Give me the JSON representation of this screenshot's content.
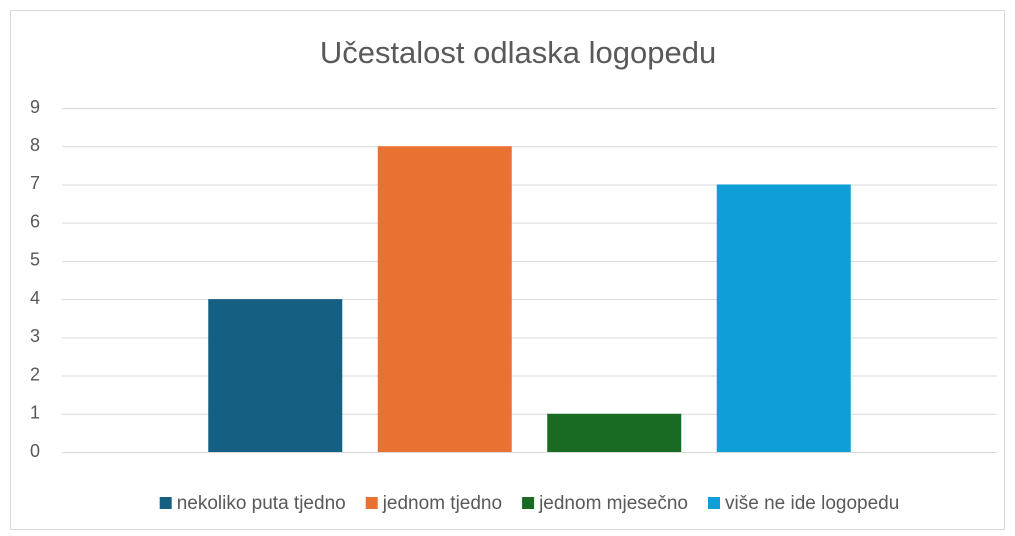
{
  "chart_data": {
    "type": "bar",
    "title": "Učestalost odlaska logopedu",
    "categories": [
      null
    ],
    "series": [
      {
        "name": "nekoliko puta tjedno",
        "color": "#156082",
        "values": [
          4
        ]
      },
      {
        "name": "jednom tjedno",
        "color": "#e97132",
        "values": [
          8
        ]
      },
      {
        "name": "jednom mjesečno",
        "color": "#196b24",
        "values": [
          1
        ]
      },
      {
        "name": "više ne ide logopedu",
        "color": "#0f9ed5",
        "values": [
          7
        ]
      }
    ],
    "ylim": [
      0,
      9
    ],
    "yticks": [
      0,
      1,
      2,
      3,
      4,
      5,
      6,
      7,
      8,
      9
    ],
    "grid": true,
    "legend": "bottom"
  }
}
